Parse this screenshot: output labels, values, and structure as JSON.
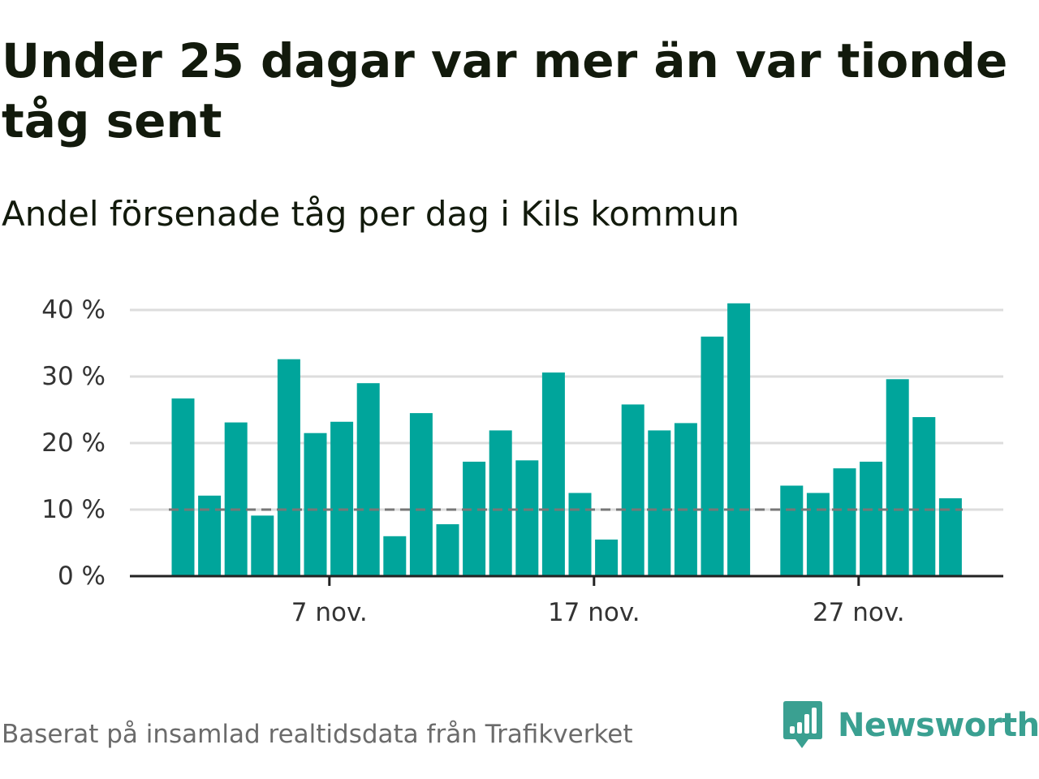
{
  "title": "Under 25 dagar var mer än var tionde tåg sent",
  "subtitle": "Andel försenade tåg per dag i Kils kommun",
  "footer": "Baserat på insamlad realtidsdata från Trafikverket",
  "brand": {
    "name": "Newsworthy",
    "icon": "newsworthy-logo-icon",
    "color": "#3aa091"
  },
  "colors": {
    "bar": "#00a59b",
    "grid": "#dddddd",
    "axis": "#222222",
    "threshold": "#777777"
  },
  "chart_data": {
    "type": "bar",
    "title": "Under 25 dagar var mer än var tionde tåg sent",
    "subtitle": "Andel försenade tåg per dag i Kils kommun",
    "x": [
      1,
      2,
      3,
      4,
      5,
      6,
      7,
      8,
      9,
      10,
      11,
      12,
      13,
      14,
      15,
      16,
      17,
      18,
      19,
      20,
      21,
      22,
      23,
      24,
      25,
      26,
      27,
      28,
      29,
      30
    ],
    "values": [
      26.7,
      12.1,
      23.1,
      9.1,
      32.6,
      21.5,
      23.2,
      29.0,
      6.0,
      24.5,
      7.8,
      17.2,
      21.9,
      17.4,
      30.6,
      12.5,
      5.5,
      25.8,
      21.9,
      23.0,
      36.0,
      41.0,
      null,
      13.6,
      12.5,
      16.2,
      17.2,
      29.6,
      23.9,
      11.7
    ],
    "xticks": [
      7,
      17,
      27
    ],
    "xtick_labels": [
      "7 nov.",
      "17 nov.",
      "27 nov."
    ],
    "yticks": [
      0,
      10,
      20,
      30,
      40
    ],
    "ytick_labels": [
      "0 %",
      "10 %",
      "20 %",
      "30 %",
      "40 %"
    ],
    "ylim": [
      0,
      42
    ],
    "threshold": 10,
    "grid": true,
    "xlabel": "",
    "ylabel": ""
  }
}
